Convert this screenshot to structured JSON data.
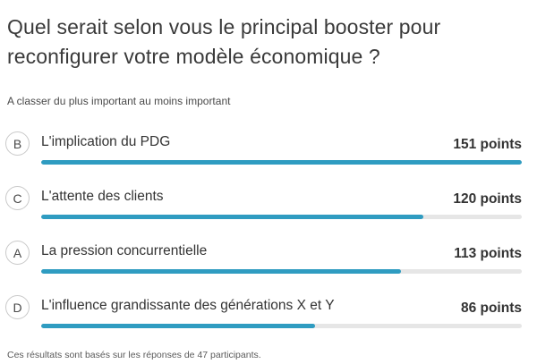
{
  "question": {
    "title": "Quel serait selon vous le principal booster pour reconfigurer votre modèle économique ?",
    "instruction": "A classer du plus important au moins important"
  },
  "options": [
    {
      "letter": "B",
      "label": "L'implication du PDG",
      "points_text": "151 points",
      "points": 151
    },
    {
      "letter": "C",
      "label": "L'attente des clients",
      "points_text": "120 points",
      "points": 120
    },
    {
      "letter": "A",
      "label": "La pression concurrentielle",
      "points_text": "113 points",
      "points": 113
    },
    {
      "letter": "D",
      "label": "L'influence grandissante des générations X et Y",
      "points_text": "86 points",
      "points": 86
    }
  ],
  "max_points": 151,
  "colors": {
    "bar_fill": "#2f9cc1",
    "bar_track": "#e6e6e6"
  },
  "footer": "Ces résultats sont basés sur les réponses de 47 participants."
}
